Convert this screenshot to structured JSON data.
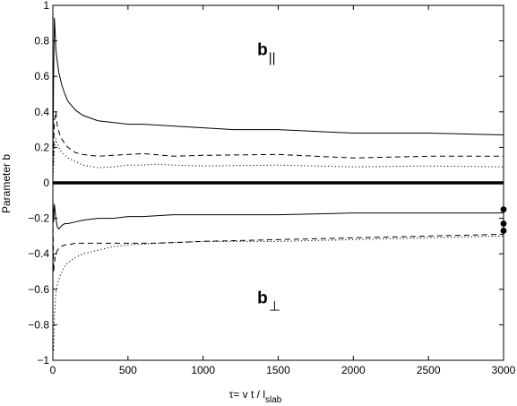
{
  "chart_data": {
    "type": "line",
    "title": "",
    "xlabel": "τ= v t / l",
    "xlabel_sub": "slab",
    "ylabel": "Parameter b",
    "xlim": [
      0,
      3000
    ],
    "ylim": [
      -1,
      1
    ],
    "xticks": [
      0,
      500,
      1000,
      1500,
      2000,
      2500,
      3000
    ],
    "xtick_labels": [
      "0",
      "500",
      "1000",
      "1500",
      "2000",
      "2500",
      "3000"
    ],
    "yticks": [
      -1,
      -0.8,
      -0.6,
      -0.4,
      -0.2,
      0,
      0.2,
      0.4,
      0.6,
      0.8,
      1
    ],
    "ytick_labels": [
      "−1",
      "−0.8",
      "−0.6",
      "−0.4",
      "−0.2",
      "0",
      "0.2",
      "0.4",
      "0.6",
      "0.8",
      "1"
    ],
    "grid": false,
    "annotations": [
      {
        "text": "b",
        "sub": "||",
        "x": 1430,
        "y": 0.72
      },
      {
        "text": "b",
        "sub": "⊥",
        "x": 1430,
        "y": -0.68
      }
    ],
    "zero_line": {
      "y": 0,
      "thick": true
    },
    "series": [
      {
        "style": "solid",
        "color": "#000000",
        "x": [
          0,
          5,
          10,
          15,
          20,
          30,
          40,
          60,
          80,
          100,
          150,
          200,
          300,
          400,
          500,
          600,
          800,
          1000,
          1200,
          1500,
          2000,
          2500,
          3000
        ],
        "y": [
          0.1,
          0.6,
          0.93,
          0.85,
          0.75,
          0.68,
          0.62,
          0.55,
          0.5,
          0.46,
          0.41,
          0.38,
          0.35,
          0.34,
          0.33,
          0.33,
          0.32,
          0.31,
          0.3,
          0.3,
          0.28,
          0.28,
          0.27
        ]
      },
      {
        "style": "dashed",
        "color": "#000000",
        "x": [
          0,
          5,
          10,
          20,
          30,
          50,
          80,
          100,
          150,
          200,
          300,
          400,
          500,
          600,
          800,
          1000,
          1500,
          2000,
          2500,
          3000
        ],
        "y": [
          0.05,
          0.2,
          0.35,
          0.4,
          0.32,
          0.26,
          0.22,
          0.2,
          0.17,
          0.16,
          0.15,
          0.155,
          0.16,
          0.165,
          0.15,
          0.155,
          0.16,
          0.14,
          0.15,
          0.15
        ]
      },
      {
        "style": "dotted",
        "color": "#000000",
        "x": [
          0,
          10,
          20,
          30,
          50,
          100,
          150,
          200,
          300,
          400,
          500,
          600,
          700,
          800,
          1000,
          1500,
          2000,
          2500,
          3000
        ],
        "y": [
          0.0,
          0.2,
          0.25,
          0.22,
          0.18,
          0.14,
          0.12,
          0.1,
          0.085,
          0.09,
          0.1,
          0.1,
          0.105,
          0.1,
          0.095,
          0.1,
          0.09,
          0.095,
          0.09
        ]
      },
      {
        "style": "solid",
        "color": "#000000",
        "x": [
          0,
          5,
          10,
          20,
          30,
          40,
          60,
          80,
          100,
          150,
          200,
          300,
          400,
          500,
          600,
          800,
          1000,
          1500,
          2000,
          2500,
          3000
        ],
        "y": [
          -0.1,
          -0.22,
          -0.12,
          -0.2,
          -0.25,
          -0.26,
          -0.24,
          -0.23,
          -0.23,
          -0.22,
          -0.21,
          -0.2,
          -0.2,
          -0.19,
          -0.19,
          -0.18,
          -0.18,
          -0.18,
          -0.17,
          -0.17,
          -0.17
        ]
      },
      {
        "style": "dashed",
        "color": "#000000",
        "x": [
          0,
          5,
          10,
          20,
          30,
          50,
          80,
          100,
          150,
          200,
          300,
          400,
          500,
          700,
          1000,
          1500,
          2000,
          2500,
          3000
        ],
        "y": [
          -0.2,
          -0.5,
          -0.45,
          -0.4,
          -0.38,
          -0.36,
          -0.35,
          -0.35,
          -0.34,
          -0.34,
          -0.34,
          -0.34,
          -0.34,
          -0.34,
          -0.33,
          -0.32,
          -0.31,
          -0.3,
          -0.29
        ]
      },
      {
        "style": "dotted",
        "color": "#000000",
        "x": [
          0,
          5,
          10,
          20,
          30,
          50,
          80,
          100,
          150,
          200,
          300,
          400,
          500,
          700,
          1000,
          1500,
          2000,
          2500,
          3000
        ],
        "y": [
          -0.9,
          -0.95,
          -0.75,
          -0.62,
          -0.57,
          -0.52,
          -0.47,
          -0.45,
          -0.42,
          -0.4,
          -0.38,
          -0.36,
          -0.35,
          -0.34,
          -0.33,
          -0.33,
          -0.32,
          -0.31,
          -0.3
        ]
      }
    ],
    "markers": [
      {
        "x": 3000,
        "y": -0.15
      },
      {
        "x": 3000,
        "y": -0.23
      },
      {
        "x": 3000,
        "y": -0.27
      }
    ]
  }
}
